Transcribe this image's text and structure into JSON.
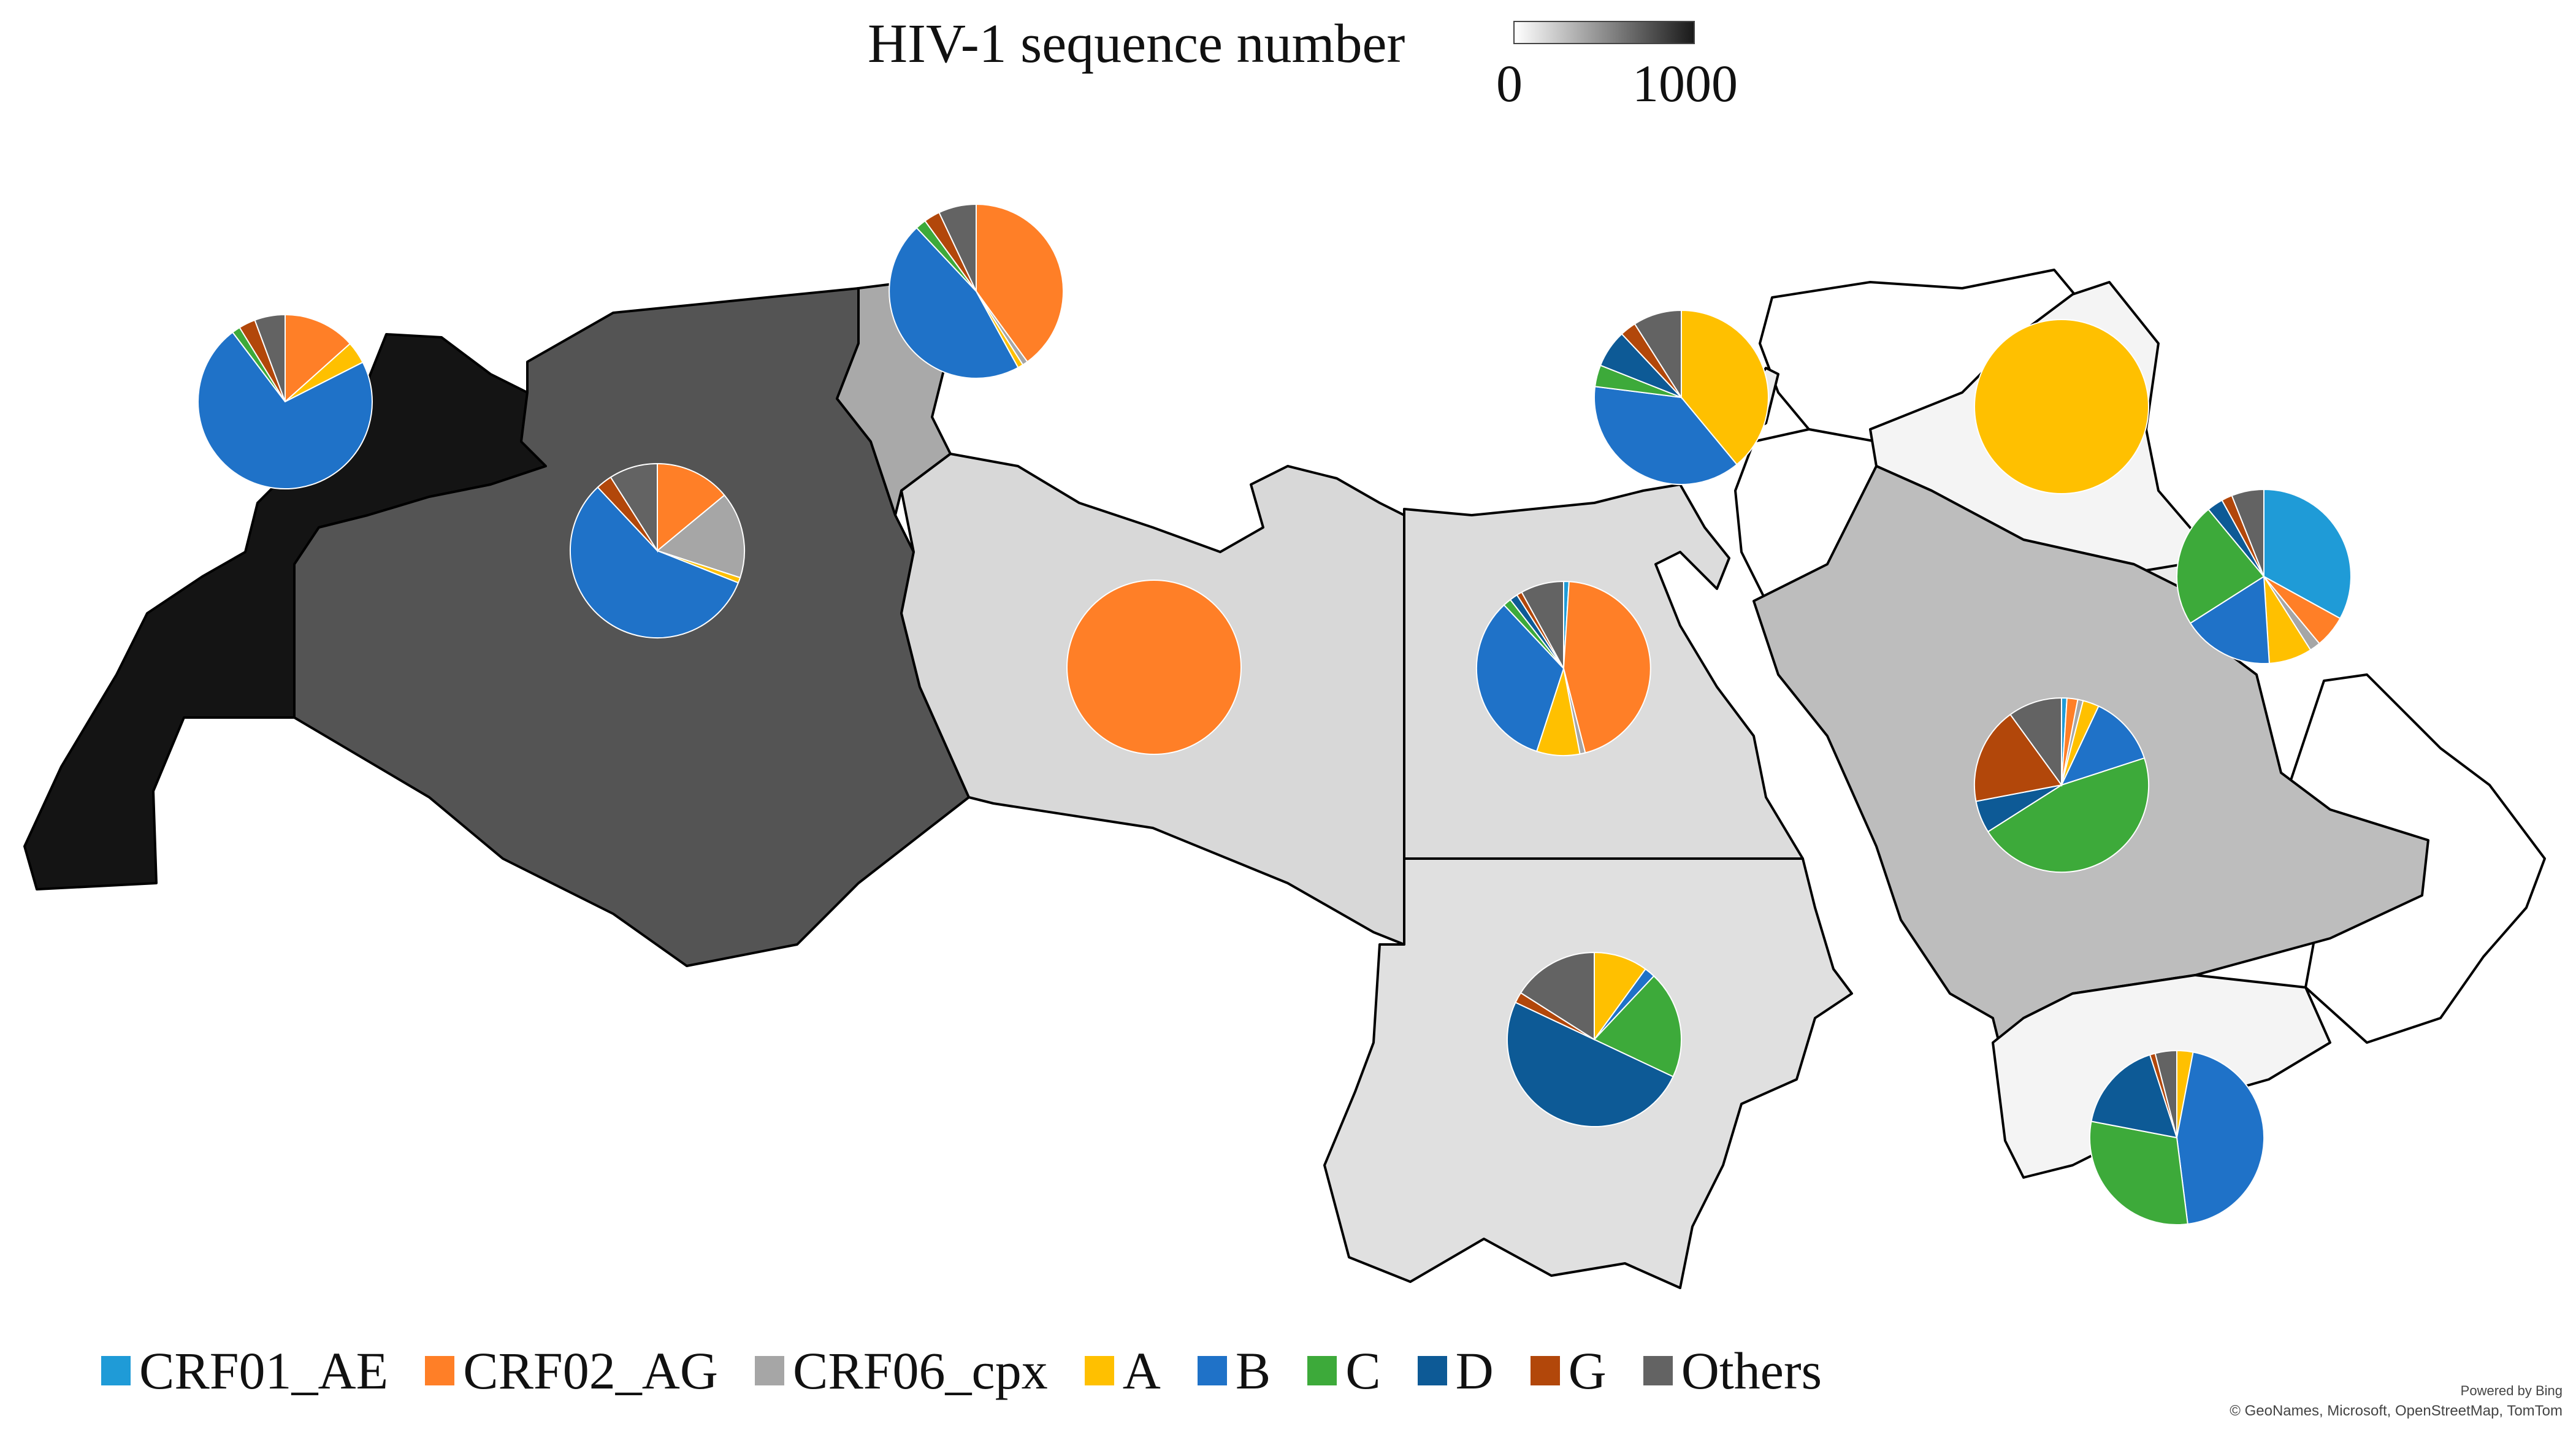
{
  "title": "HIV-1 sequence number",
  "scale": {
    "min_label": "0",
    "max_label": "1000",
    "min_color": "#ffffff",
    "max_color": "#1a1a1a"
  },
  "subtypes": [
    {
      "name": "CRF01_AE",
      "color": "#1f9bd7"
    },
    {
      "name": "CRF02_AG",
      "color": "#ff7f27"
    },
    {
      "name": "CRF06_cpx",
      "color": "#a6a6a6"
    },
    {
      "name": "A",
      "color": "#ffc000"
    },
    {
      "name": "B",
      "color": "#1f72c8"
    },
    {
      "name": "C",
      "color": "#3daa3a"
    },
    {
      "name": "D",
      "color": "#0d5a96"
    },
    {
      "name": "G",
      "color": "#b2470a"
    },
    {
      "name": "Others",
      "color": "#636363"
    }
  ],
  "countries": [
    {
      "name": "Morocco",
      "shade": "#141414"
    },
    {
      "name": "Algeria",
      "shade": "#545454"
    },
    {
      "name": "Tunisia",
      "shade": "#a9a9a9"
    },
    {
      "name": "Libya",
      "shade": "#d8d8d8"
    },
    {
      "name": "Egypt",
      "shade": "#dcdcdc"
    },
    {
      "name": "Sudan",
      "shade": "#e0e0e0"
    },
    {
      "name": "Lebanon",
      "shade": "#ececec"
    },
    {
      "name": "Iraq",
      "shade": "#f4f4f4"
    },
    {
      "name": "Kuwait",
      "shade": "#ececec"
    },
    {
      "name": "Saudi Arabia",
      "shade": "#bdbdbd"
    },
    {
      "name": "Yemen",
      "shade": "#f4f4f4"
    }
  ],
  "pies": [
    {
      "country": "Morocco",
      "values": {
        "CRF01_AE": 0,
        "CRF02_AG": 13,
        "CRF06_cpx": 0,
        "A": 4,
        "B": 70,
        "C": 1.5,
        "D": 0,
        "G": 3,
        "Others": 5.5
      }
    },
    {
      "country": "Tunisia",
      "values": {
        "CRF01_AE": 0,
        "CRF02_AG": 40,
        "CRF06_cpx": 1,
        "A": 1,
        "B": 46,
        "C": 2,
        "D": 0,
        "G": 3,
        "Others": 7
      }
    },
    {
      "country": "Algeria",
      "values": {
        "CRF01_AE": 0,
        "CRF02_AG": 14,
        "CRF06_cpx": 16,
        "A": 1,
        "B": 57,
        "C": 0,
        "D": 0,
        "G": 3,
        "Others": 9
      }
    },
    {
      "country": "Libya",
      "values": {
        "CRF01_AE": 0,
        "CRF02_AG": 100,
        "CRF06_cpx": 0,
        "A": 0,
        "B": 0,
        "C": 0,
        "D": 0,
        "G": 0,
        "Others": 0
      }
    },
    {
      "country": "Lebanon",
      "values": {
        "CRF01_AE": 0,
        "CRF02_AG": 0,
        "CRF06_cpx": 0,
        "A": 39,
        "B": 38,
        "C": 4,
        "D": 7,
        "G": 3,
        "Others": 9
      }
    },
    {
      "country": "Iraq",
      "values": {
        "CRF01_AE": 0,
        "CRF02_AG": 0,
        "CRF06_cpx": 0,
        "A": 100,
        "B": 0,
        "C": 0,
        "D": 0,
        "G": 0,
        "Others": 0
      }
    },
    {
      "country": "Kuwait",
      "values": {
        "CRF01_AE": 33,
        "CRF02_AG": 6,
        "CRF06_cpx": 2,
        "A": 8,
        "B": 17,
        "C": 23,
        "D": 3,
        "G": 2,
        "Others": 6
      }
    },
    {
      "country": "Egypt",
      "values": {
        "CRF01_AE": 1,
        "CRF02_AG": 45,
        "CRF06_cpx": 1,
        "A": 8,
        "B": 33,
        "C": 1.5,
        "D": 1.5,
        "G": 1,
        "Others": 8
      }
    },
    {
      "country": "Saudi Arabia",
      "values": {
        "CRF01_AE": 1,
        "CRF02_AG": 2,
        "CRF06_cpx": 1,
        "A": 3,
        "B": 13,
        "C": 46,
        "D": 6,
        "G": 18,
        "Others": 10
      }
    },
    {
      "country": "Sudan",
      "values": {
        "CRF01_AE": 0,
        "CRF02_AG": 0,
        "CRF06_cpx": 0,
        "A": 10,
        "B": 2,
        "C": 20,
        "D": 50,
        "G": 2,
        "Others": 16
      }
    },
    {
      "country": "Yemen",
      "values": {
        "CRF01_AE": 0,
        "CRF02_AG": 0,
        "CRF06_cpx": 0,
        "A": 3,
        "B": 45,
        "C": 30,
        "D": 17,
        "G": 1,
        "Others": 4
      }
    }
  ],
  "attribution": {
    "line1": "Powered by Bing",
    "line2": "© GeoNames, Microsoft, OpenStreetMap, TomTom"
  }
}
